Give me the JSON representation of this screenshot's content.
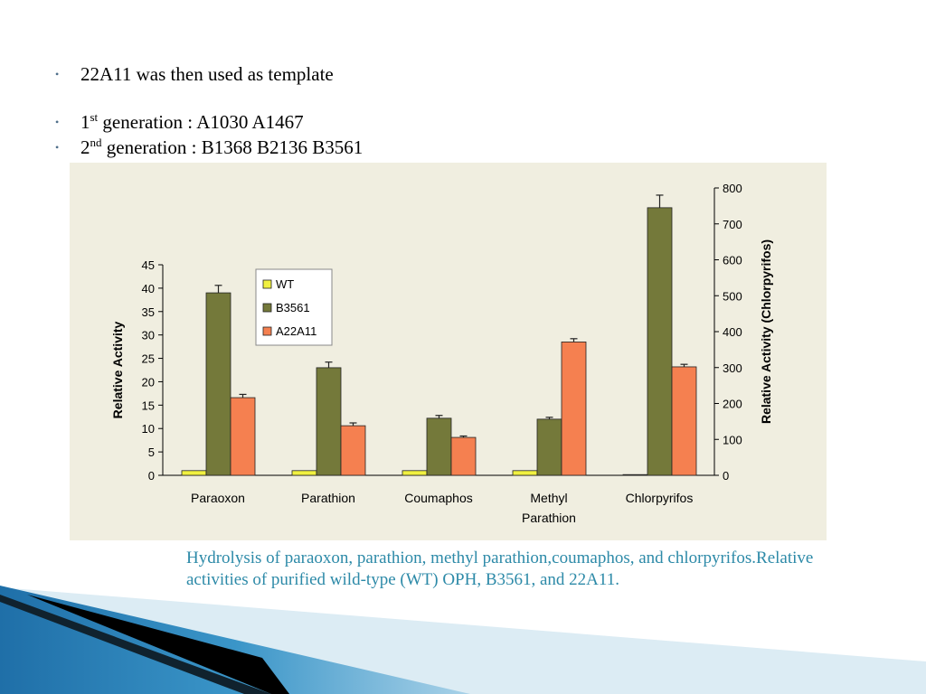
{
  "slide": {
    "bullets": [
      {
        "marker": "•",
        "prefix": "22A11 was then used as template",
        "sup": "",
        "suffix": ""
      },
      {
        "marker": "•",
        "prefix": "1",
        "sup": "st",
        "suffix": " generation : A1030 A1467"
      },
      {
        "marker": "•",
        "prefix": "2",
        "sup": "nd",
        "suffix": " generation : B1368 B2136 B3561"
      }
    ],
    "caption": "Hydrolysis of paraoxon, parathion, methyl parathion,coumaphos, and chlorpyrifos.Relative activities of purified wild-type (WT) OPH, B3561, and 22A11.",
    "colors": {
      "caption": "#2d8aa8",
      "panel_bg": "#f0eee0",
      "deco_blue": "#2a7fb6",
      "deco_light": "#9cc8e0"
    }
  },
  "chart_data": {
    "type": "bar",
    "categories": [
      "Paraoxon",
      "Parathion",
      "Coumaphos",
      "Methyl Parathion",
      "Chlorpyrifos"
    ],
    "category_label_lines": [
      [
        "Paraoxon"
      ],
      [
        "Parathion"
      ],
      [
        "Coumaphos"
      ],
      [
        "Methyl",
        "Parathion"
      ],
      [
        "Chlorpyrifos"
      ]
    ],
    "series": [
      {
        "name": "WT",
        "color": "#f0f040",
        "values": [
          1,
          1,
          1,
          1,
          2
        ],
        "errors": [
          0,
          0,
          0,
          0,
          0
        ]
      },
      {
        "name": "B3561",
        "color": "#74793a",
        "values": [
          39,
          23,
          12.2,
          12,
          745
        ],
        "errors": [
          1.6,
          1.2,
          0.6,
          0.4,
          35
        ]
      },
      {
        "name": "A22A11",
        "color": "#f58050",
        "values": [
          16.6,
          10.6,
          8.1,
          28.5,
          302
        ],
        "errors": [
          0.7,
          0.6,
          0.3,
          0.7,
          7
        ]
      }
    ],
    "axis_assignment": [
      "left",
      "left",
      "left",
      "left",
      "right"
    ],
    "xlabel": "",
    "ylabel": "Relative Activity",
    "y2label": "Relative Activity (Chlorpyrifos)",
    "ylim": [
      0,
      45
    ],
    "yticks": [
      "0",
      "5",
      "10",
      "15",
      "20",
      "25",
      "30",
      "35",
      "40",
      "45"
    ],
    "y2lim": [
      0,
      800
    ],
    "y2ticks": [
      "0",
      "100",
      "200",
      "300",
      "400",
      "500",
      "600",
      "700",
      "800"
    ],
    "legend_position": "top-left",
    "grid": false
  }
}
